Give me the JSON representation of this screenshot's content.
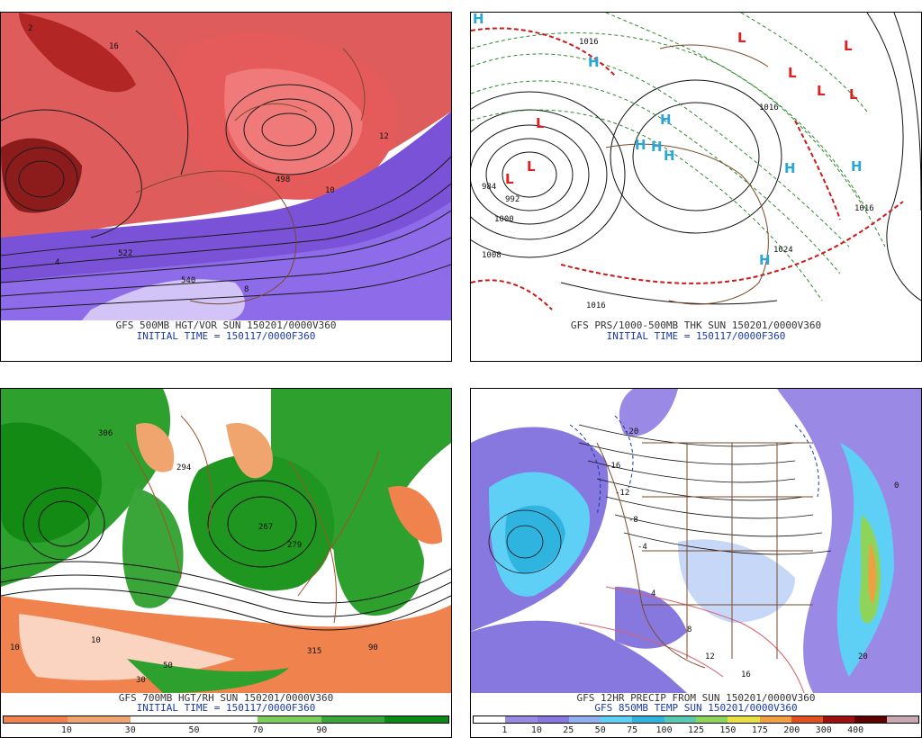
{
  "panels": {
    "tl": {
      "caption_line1": "GFS 500MB HGT/VOR SUN 150201/0000V360",
      "caption_line2": "INITIAL TIME = 150117/0000F360",
      "contour_labels": [
        "498",
        "522",
        "540",
        "4",
        "8",
        "10",
        "12",
        "16",
        "2"
      ]
    },
    "tr": {
      "caption_line1": "GFS PRS/1000-500MB THK SUN 150201/0000V360",
      "caption_line2": "INITIAL TIME = 150117/0000F360",
      "isobar_labels": [
        "1016",
        "1016",
        "984",
        "992",
        "1000",
        "1008",
        "1016",
        "1016",
        "1024"
      ],
      "low_markers": [
        "L",
        "L",
        "L",
        "L",
        "L",
        "L",
        "L",
        "L"
      ],
      "high_markers": [
        "H",
        "H",
        "H",
        "H",
        "H",
        "H",
        "H",
        "H",
        "H"
      ]
    },
    "bl": {
      "caption_line1": "GFS 700MB HGT/RH SUN 150201/0000V360",
      "caption_line2": "INITIAL TIME = 150117/0000F360",
      "contour_labels": [
        "306",
        "294",
        "267",
        "279",
        "315",
        "10",
        "10",
        "50",
        "30",
        "90"
      ],
      "colorbar": {
        "colors": [
          "#f0824e",
          "#f0a46e",
          "#ffffff",
          "#ffffff",
          "#7cce5a",
          "#3aa63a",
          "#0a8a12"
        ],
        "tick_labels": [
          "10",
          "30",
          "50",
          "70",
          "90"
        ]
      }
    },
    "br": {
      "caption_line1": "GFS 12HR PRECIP FROM SUN 150201/0000V360",
      "caption_line2": "GFS 850MB TEMP SUN 150201/0000V360",
      "contour_labels": [
        "-20",
        "-16",
        "-12",
        "-8",
        "-4",
        "0",
        "4",
        "8",
        "12",
        "16",
        "20"
      ],
      "colorbar": {
        "colors": [
          "#ffffff",
          "#9a8ae6",
          "#8678de",
          "#8fb0f0",
          "#5fd0f5",
          "#2fb4e0",
          "#58c8b0",
          "#8ed45a",
          "#e8e040",
          "#f0a040",
          "#e05020",
          "#9e1010",
          "#5e0000",
          "#c8a8b0"
        ],
        "tick_labels": [
          "1",
          "10",
          "25",
          "50",
          "75",
          "100",
          "125",
          "150",
          "175",
          "200",
          "300",
          "400"
        ]
      }
    }
  }
}
